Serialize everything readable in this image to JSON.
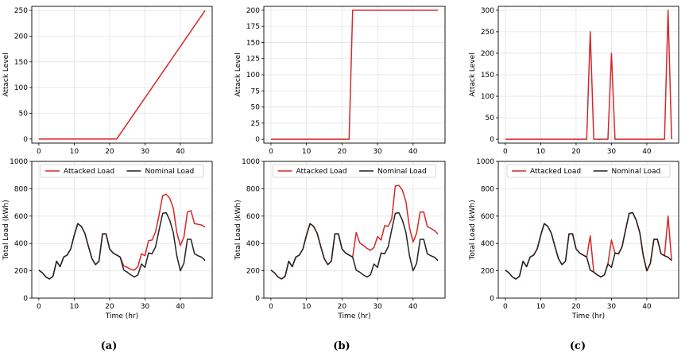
{
  "figure": {
    "captions": [
      "(a)",
      "(b)",
      "(c)"
    ]
  },
  "chart_data": [
    {
      "type": "line",
      "panel": "a-top",
      "xlabel": "",
      "ylabel": "Attack Level",
      "xlim": [
        -2,
        49
      ],
      "ylim": [
        -8,
        258
      ],
      "xticks": [
        0,
        10,
        20,
        30,
        40
      ],
      "yticks": [
        0,
        50,
        100,
        150,
        200,
        250
      ],
      "grid": true,
      "series": [
        {
          "color": "#d62728",
          "x": [
            0,
            22,
            47
          ],
          "y": [
            0,
            0,
            250
          ]
        }
      ]
    },
    {
      "type": "line",
      "panel": "b-top",
      "xlabel": "",
      "ylabel": "Attack Level",
      "xlim": [
        -2,
        49
      ],
      "ylim": [
        -6,
        206
      ],
      "xticks": [
        0,
        10,
        20,
        30,
        40
      ],
      "yticks": [
        0,
        25,
        50,
        75,
        100,
        125,
        150,
        175,
        200
      ],
      "grid": true,
      "series": [
        {
          "color": "#d62728",
          "x": [
            0,
            22,
            23,
            47
          ],
          "y": [
            0,
            0,
            200,
            200
          ]
        }
      ]
    },
    {
      "type": "line",
      "panel": "c-top",
      "xlabel": "",
      "ylabel": "Attack Level",
      "xlim": [
        -2,
        49
      ],
      "ylim": [
        -9,
        309
      ],
      "xticks": [
        0,
        10,
        20,
        30,
        40
      ],
      "yticks": [
        0,
        50,
        100,
        150,
        200,
        250,
        300
      ],
      "grid": true,
      "series": [
        {
          "color": "#d62728",
          "x": [
            0,
            23,
            24,
            25,
            29,
            30,
            31,
            45,
            46,
            47
          ],
          "y": [
            0,
            0,
            250,
            0,
            0,
            200,
            0,
            0,
            300,
            0
          ]
        }
      ]
    },
    {
      "type": "line",
      "panel": "a-bottom",
      "xlabel": "Time (hr)",
      "ylabel": "Total Load (kWh)",
      "xlim": [
        -2,
        49
      ],
      "ylim": [
        0,
        1000
      ],
      "xticks": [
        0,
        10,
        20,
        30,
        40
      ],
      "yticks": [
        0,
        200,
        400,
        600,
        800,
        1000
      ],
      "grid": true,
      "legend": "top",
      "series": [
        {
          "name": "Attacked Load",
          "color": "#d62728",
          "x": [
            0,
            1,
            2,
            3,
            4,
            5,
            6,
            7,
            8,
            9,
            10,
            11,
            12,
            13,
            14,
            15,
            16,
            17,
            18,
            19,
            20,
            21,
            22,
            23,
            24,
            25,
            26,
            27,
            28,
            29,
            30,
            31,
            32,
            33,
            34,
            35,
            36,
            37,
            38,
            39,
            40,
            41,
            42,
            43,
            44,
            45,
            46,
            47
          ],
          "y": [
            205,
            185,
            155,
            140,
            160,
            270,
            230,
            300,
            315,
            360,
            460,
            545,
            525,
            475,
            380,
            290,
            245,
            270,
            470,
            470,
            360,
            330,
            315,
            300,
            235,
            225,
            210,
            205,
            230,
            325,
            310,
            420,
            425,
            485,
            610,
            750,
            760,
            730,
            660,
            480,
            385,
            445,
            630,
            640,
            545,
            540,
            535,
            520
          ]
        },
        {
          "name": "Nominal Load",
          "color": "#222222",
          "x": [
            0,
            1,
            2,
            3,
            4,
            5,
            6,
            7,
            8,
            9,
            10,
            11,
            12,
            13,
            14,
            15,
            16,
            17,
            18,
            19,
            20,
            21,
            22,
            23,
            24,
            25,
            26,
            27,
            28,
            29,
            30,
            31,
            32,
            33,
            34,
            35,
            36,
            37,
            38,
            39,
            40,
            41,
            42,
            43,
            44,
            45,
            46,
            47
          ],
          "y": [
            205,
            185,
            155,
            140,
            160,
            270,
            230,
            300,
            315,
            360,
            460,
            545,
            525,
            475,
            380,
            290,
            245,
            270,
            470,
            470,
            360,
            330,
            315,
            300,
            205,
            190,
            170,
            155,
            170,
            250,
            225,
            330,
            325,
            375,
            500,
            620,
            625,
            570,
            480,
            310,
            200,
            255,
            430,
            430,
            325,
            310,
            300,
            275
          ]
        }
      ]
    },
    {
      "type": "line",
      "panel": "b-bottom",
      "xlabel": "Time (hr)",
      "ylabel": "Total Load (kWh)",
      "xlim": [
        -2,
        49
      ],
      "ylim": [
        0,
        1000
      ],
      "xticks": [
        0,
        10,
        20,
        30,
        40
      ],
      "yticks": [
        0,
        200,
        400,
        600,
        800,
        1000
      ],
      "grid": true,
      "legend": "top",
      "series": [
        {
          "name": "Attacked Load",
          "color": "#d62728",
          "x": [
            0,
            1,
            2,
            3,
            4,
            5,
            6,
            7,
            8,
            9,
            10,
            11,
            12,
            13,
            14,
            15,
            16,
            17,
            18,
            19,
            20,
            21,
            22,
            23,
            24,
            25,
            26,
            27,
            28,
            29,
            30,
            31,
            32,
            33,
            34,
            35,
            36,
            37,
            38,
            39,
            40,
            41,
            42,
            43,
            44,
            45,
            46,
            47
          ],
          "y": [
            205,
            185,
            155,
            140,
            160,
            270,
            230,
            300,
            315,
            360,
            460,
            545,
            525,
            475,
            380,
            290,
            245,
            270,
            470,
            470,
            360,
            330,
            315,
            300,
            480,
            405,
            385,
            365,
            350,
            370,
            450,
            425,
            530,
            525,
            580,
            820,
            825,
            790,
            705,
            515,
            410,
            475,
            630,
            630,
            525,
            510,
            495,
            470
          ]
        },
        {
          "name": "Nominal Load",
          "color": "#222222",
          "x": [
            0,
            1,
            2,
            3,
            4,
            5,
            6,
            7,
            8,
            9,
            10,
            11,
            12,
            13,
            14,
            15,
            16,
            17,
            18,
            19,
            20,
            21,
            22,
            23,
            24,
            25,
            26,
            27,
            28,
            29,
            30,
            31,
            32,
            33,
            34,
            35,
            36,
            37,
            38,
            39,
            40,
            41,
            42,
            43,
            44,
            45,
            46,
            47
          ],
          "y": [
            205,
            185,
            155,
            140,
            160,
            270,
            230,
            300,
            315,
            360,
            460,
            545,
            525,
            475,
            380,
            290,
            245,
            270,
            470,
            470,
            360,
            330,
            315,
            300,
            205,
            190,
            170,
            155,
            170,
            250,
            225,
            330,
            325,
            375,
            500,
            620,
            625,
            570,
            480,
            310,
            200,
            255,
            430,
            430,
            325,
            310,
            300,
            275
          ]
        }
      ]
    },
    {
      "type": "line",
      "panel": "c-bottom",
      "xlabel": "Time (hr)",
      "ylabel": "Total Load (kWh)",
      "xlim": [
        -2,
        49
      ],
      "ylim": [
        0,
        1000
      ],
      "xticks": [
        0,
        10,
        20,
        30,
        40
      ],
      "yticks": [
        0,
        200,
        400,
        600,
        800,
        1000
      ],
      "grid": true,
      "legend": "top",
      "series": [
        {
          "name": "Attacked Load",
          "color": "#d62728",
          "x": [
            0,
            1,
            2,
            3,
            4,
            5,
            6,
            7,
            8,
            9,
            10,
            11,
            12,
            13,
            14,
            15,
            16,
            17,
            18,
            19,
            20,
            21,
            22,
            23,
            24,
            25,
            26,
            27,
            28,
            29,
            30,
            31,
            32,
            33,
            34,
            35,
            36,
            37,
            38,
            39,
            40,
            41,
            42,
            43,
            44,
            45,
            46,
            47
          ],
          "y": [
            205,
            185,
            155,
            140,
            160,
            270,
            230,
            300,
            315,
            360,
            460,
            545,
            525,
            475,
            380,
            290,
            245,
            270,
            470,
            470,
            360,
            330,
            315,
            300,
            455,
            190,
            170,
            155,
            170,
            250,
            425,
            330,
            325,
            375,
            500,
            620,
            625,
            570,
            480,
            310,
            200,
            255,
            430,
            430,
            325,
            310,
            600,
            275
          ]
        },
        {
          "name": "Nominal Load",
          "color": "#222222",
          "x": [
            0,
            1,
            2,
            3,
            4,
            5,
            6,
            7,
            8,
            9,
            10,
            11,
            12,
            13,
            14,
            15,
            16,
            17,
            18,
            19,
            20,
            21,
            22,
            23,
            24,
            25,
            26,
            27,
            28,
            29,
            30,
            31,
            32,
            33,
            34,
            35,
            36,
            37,
            38,
            39,
            40,
            41,
            42,
            43,
            44,
            45,
            46,
            47
          ],
          "y": [
            205,
            185,
            155,
            140,
            160,
            270,
            230,
            300,
            315,
            360,
            460,
            545,
            525,
            475,
            380,
            290,
            245,
            270,
            470,
            470,
            360,
            330,
            315,
            300,
            205,
            190,
            170,
            155,
            170,
            250,
            225,
            330,
            325,
            375,
            500,
            620,
            625,
            570,
            480,
            310,
            200,
            255,
            430,
            430,
            325,
            310,
            300,
            275
          ]
        }
      ]
    }
  ]
}
